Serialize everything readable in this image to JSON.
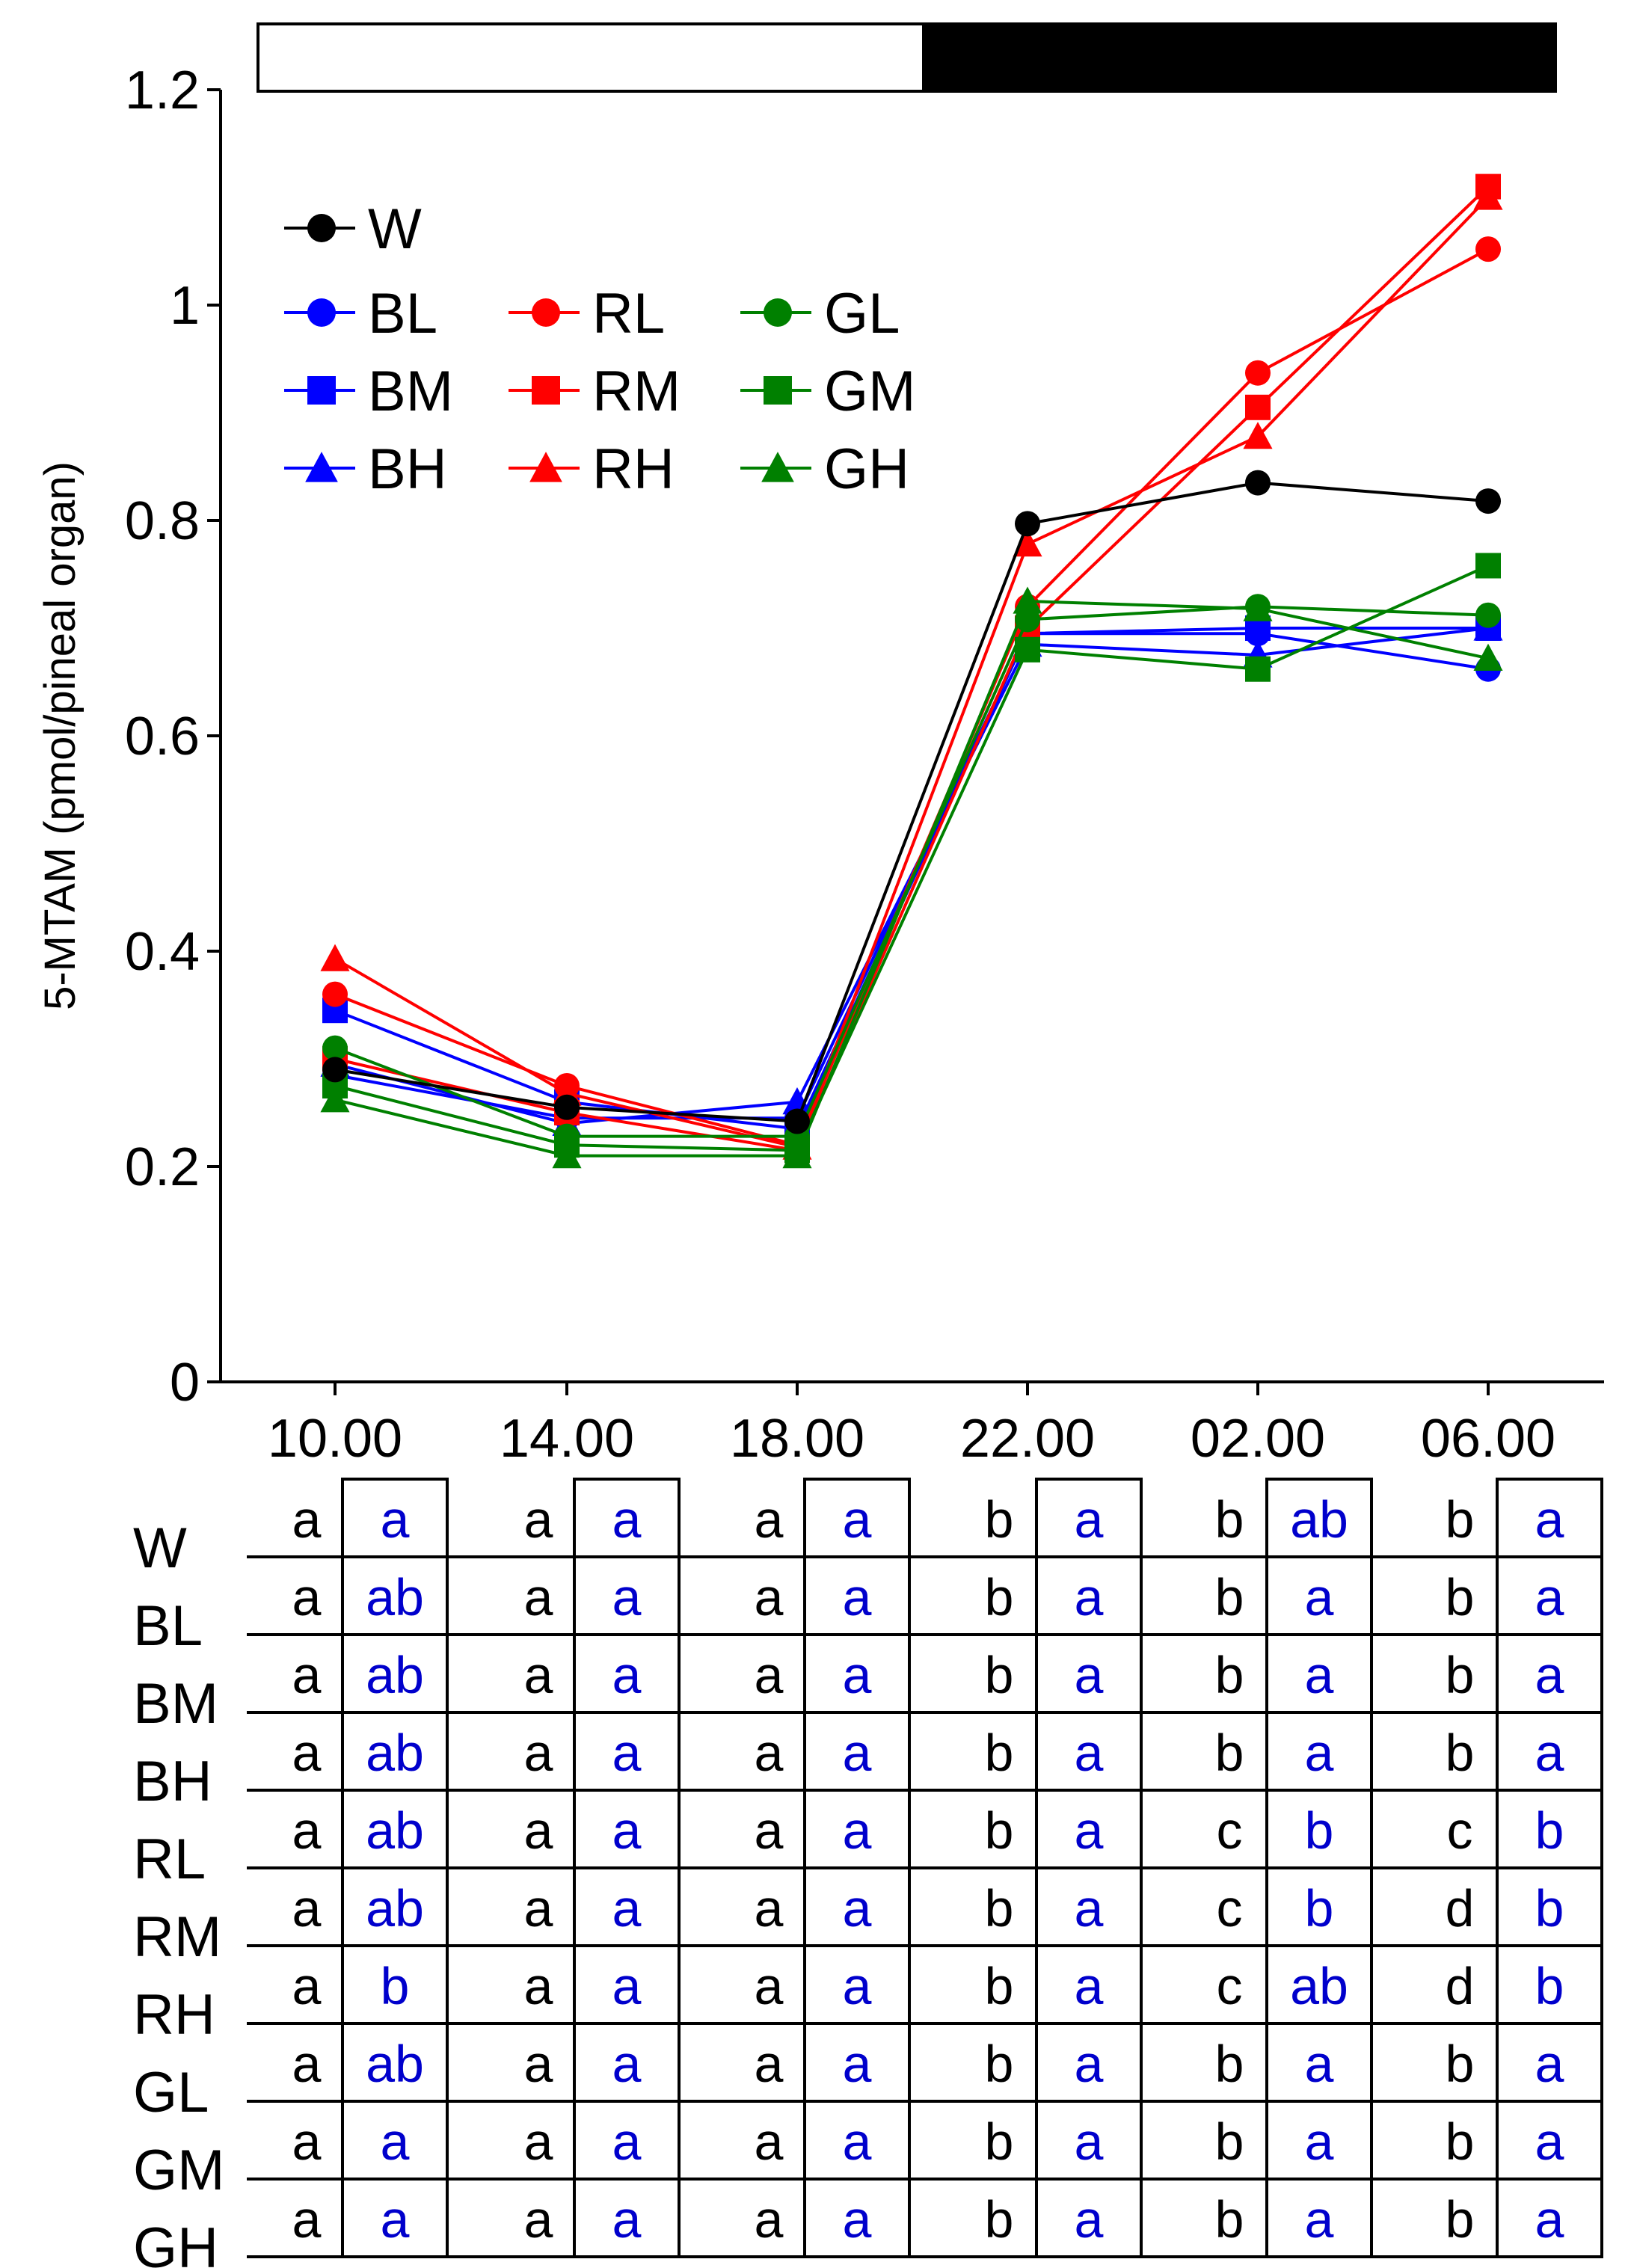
{
  "chart_data": {
    "type": "line",
    "title": "",
    "xlabel": "",
    "ylabel": "5-MTAM (pmol/pineal organ)",
    "ylim": [
      0,
      1.2
    ],
    "yticks": [
      "0",
      "0.2",
      "0.4",
      "0.6",
      "0.8",
      "1",
      "1.2"
    ],
    "categories": [
      "10.00",
      "14.00",
      "18.00",
      "22.00",
      "02.00",
      "06.00"
    ],
    "light_dark_bar": {
      "light_label": "light phase",
      "dark_label": "dark phase",
      "dark_starts_between": [
        "18.00",
        "22.00"
      ]
    },
    "legend_position": "top-left",
    "series": [
      {
        "name": "W",
        "color": "#000000",
        "marker": "circle",
        "values": [
          0.29,
          0.255,
          0.242,
          0.797,
          0.835,
          0.818
        ]
      },
      {
        "name": "BL",
        "color": "#0000ff",
        "marker": "circle",
        "values": [
          0.285,
          0.245,
          0.245,
          0.695,
          0.695,
          0.662
        ]
      },
      {
        "name": "BM",
        "color": "#0000ff",
        "marker": "square",
        "values": [
          0.345,
          0.26,
          0.235,
          0.695,
          0.7,
          0.7
        ]
      },
      {
        "name": "BH",
        "color": "#0000ff",
        "marker": "triangle",
        "values": [
          0.295,
          0.24,
          0.26,
          0.685,
          0.675,
          0.7
        ]
      },
      {
        "name": "RL",
        "color": "#ff0000",
        "marker": "circle",
        "values": [
          0.36,
          0.275,
          0.22,
          0.72,
          0.937,
          1.052
        ]
      },
      {
        "name": "RM",
        "color": "#ff0000",
        "marker": "square",
        "values": [
          0.3,
          0.25,
          0.215,
          0.7,
          0.905,
          1.11
        ]
      },
      {
        "name": "RH",
        "color": "#ff0000",
        "marker": "triangle",
        "values": [
          0.393,
          0.268,
          0.218,
          0.778,
          0.878,
          1.1
        ]
      },
      {
        "name": "GL",
        "color": "#008000",
        "marker": "circle",
        "values": [
          0.31,
          0.228,
          0.228,
          0.708,
          0.72,
          0.712
        ]
      },
      {
        "name": "GM",
        "color": "#008000",
        "marker": "square",
        "values": [
          0.275,
          0.22,
          0.215,
          0.68,
          0.662,
          0.758
        ]
      },
      {
        "name": "GH",
        "color": "#008000",
        "marker": "triangle",
        "values": [
          0.262,
          0.21,
          0.21,
          0.725,
          0.718,
          0.672
        ]
      }
    ],
    "significance_table": {
      "row_labels": [
        "W",
        "BL",
        "BM",
        "BH",
        "RL",
        "RM",
        "RH",
        "GL",
        "GM",
        "GH"
      ],
      "column_times": [
        "10.00",
        "14.00",
        "18.00",
        "22.00",
        "02.00",
        "06.00"
      ],
      "rows": [
        [
          [
            "a",
            "a"
          ],
          [
            "a",
            "a"
          ],
          [
            "a",
            "a"
          ],
          [
            "b",
            "a"
          ],
          [
            "b",
            "ab"
          ],
          [
            "b",
            "a"
          ]
        ],
        [
          [
            "a",
            "ab"
          ],
          [
            "a",
            "a"
          ],
          [
            "a",
            "a"
          ],
          [
            "b",
            "a"
          ],
          [
            "b",
            "a"
          ],
          [
            "b",
            "a"
          ]
        ],
        [
          [
            "a",
            "ab"
          ],
          [
            "a",
            "a"
          ],
          [
            "a",
            "a"
          ],
          [
            "b",
            "a"
          ],
          [
            "b",
            "a"
          ],
          [
            "b",
            "a"
          ]
        ],
        [
          [
            "a",
            "ab"
          ],
          [
            "a",
            "a"
          ],
          [
            "a",
            "a"
          ],
          [
            "b",
            "a"
          ],
          [
            "b",
            "a"
          ],
          [
            "b",
            "a"
          ]
        ],
        [
          [
            "a",
            "ab"
          ],
          [
            "a",
            "a"
          ],
          [
            "a",
            "a"
          ],
          [
            "b",
            "a"
          ],
          [
            "c",
            "b"
          ],
          [
            "c",
            "b"
          ]
        ],
        [
          [
            "a",
            "ab"
          ],
          [
            "a",
            "a"
          ],
          [
            "a",
            "a"
          ],
          [
            "b",
            "a"
          ],
          [
            "c",
            "b"
          ],
          [
            "d",
            "b"
          ]
        ],
        [
          [
            "a",
            "b"
          ],
          [
            "a",
            "a"
          ],
          [
            "a",
            "a"
          ],
          [
            "b",
            "a"
          ],
          [
            "c",
            "ab"
          ],
          [
            "d",
            "b"
          ]
        ],
        [
          [
            "a",
            "ab"
          ],
          [
            "a",
            "a"
          ],
          [
            "a",
            "a"
          ],
          [
            "b",
            "a"
          ],
          [
            "b",
            "a"
          ],
          [
            "b",
            "a"
          ]
        ],
        [
          [
            "a",
            "a"
          ],
          [
            "a",
            "a"
          ],
          [
            "a",
            "a"
          ],
          [
            "b",
            "a"
          ],
          [
            "b",
            "a"
          ],
          [
            "b",
            "a"
          ]
        ],
        [
          [
            "a",
            "a"
          ],
          [
            "a",
            "a"
          ],
          [
            "a",
            "a"
          ],
          [
            "b",
            "a"
          ],
          [
            "b",
            "a"
          ],
          [
            "b",
            "a"
          ]
        ]
      ]
    }
  }
}
